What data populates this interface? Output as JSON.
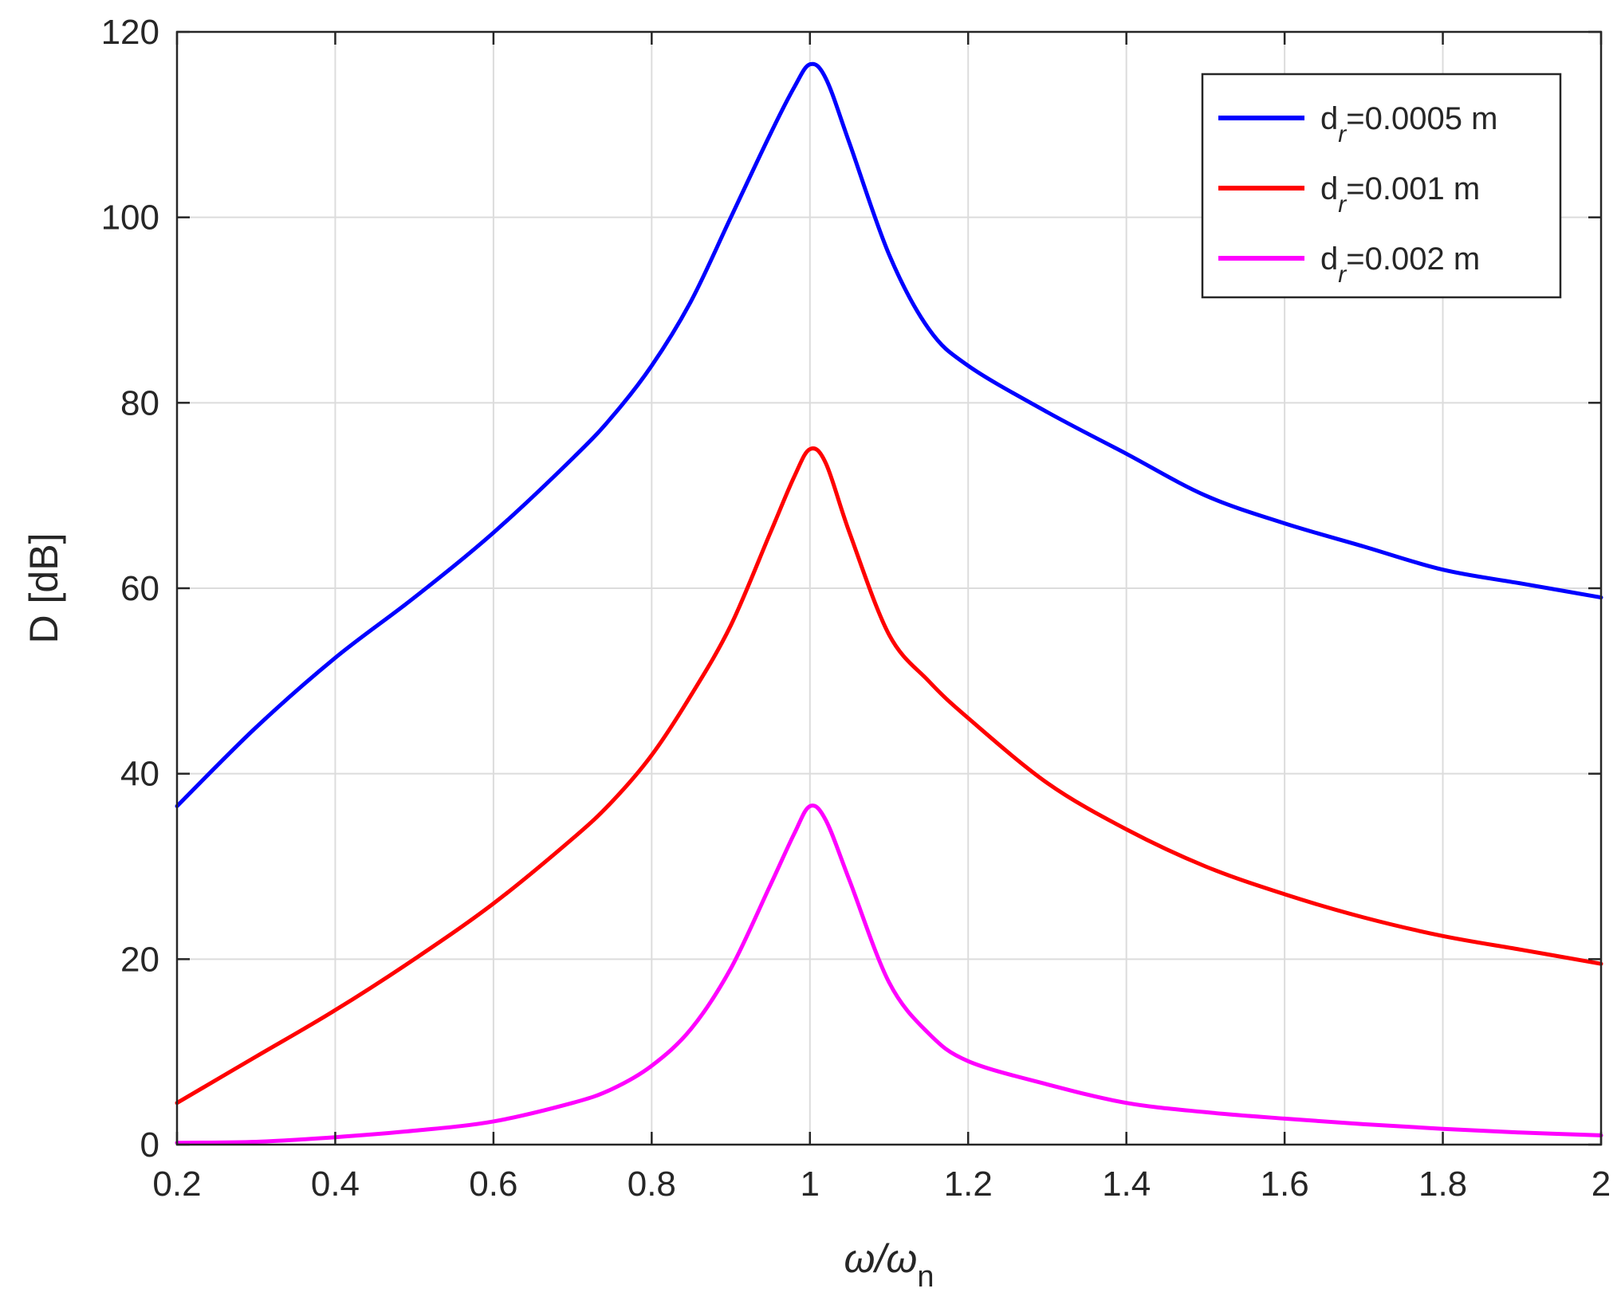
{
  "chart_data": {
    "type": "line",
    "title": "",
    "xlabel": "ω/ω",
    "xlabel_subscript": "n",
    "ylabel": "D [dB]",
    "xlim": [
      0.2,
      2
    ],
    "ylim": [
      0,
      120
    ],
    "xticks": [
      0.2,
      0.4,
      0.6,
      0.8,
      1,
      1.2,
      1.4,
      1.6,
      1.8,
      2
    ],
    "xtick_labels": [
      "0.2",
      "0.4",
      "0.6",
      "0.8",
      "1",
      "1.2",
      "1.4",
      "1.6",
      "1.8",
      "2"
    ],
    "yticks": [
      0,
      20,
      40,
      60,
      80,
      100,
      120
    ],
    "ytick_labels": [
      "0",
      "20",
      "40",
      "60",
      "80",
      "100",
      "120"
    ],
    "grid": true,
    "legend_position": "top-right",
    "x": [
      0.2,
      0.3,
      0.4,
      0.5,
      0.6,
      0.7,
      0.75,
      0.8,
      0.85,
      0.9,
      0.95,
      0.98,
      1.0,
      1.02,
      1.05,
      1.1,
      1.15,
      1.2,
      1.3,
      1.4,
      1.5,
      1.6,
      1.7,
      1.8,
      1.9,
      2.0
    ],
    "series": [
      {
        "name_main": "d",
        "name_sub": "r",
        "name_rest": "=0.0005 m",
        "color": "#0000ff",
        "values": [
          36.5,
          45,
          52.5,
          59,
          66,
          74,
          78.5,
          84,
          91,
          100,
          109,
          114,
          116.5,
          115,
          108,
          96,
          88,
          84,
          79,
          74.5,
          70,
          67,
          64.5,
          62,
          60.5,
          59
        ]
      },
      {
        "name_main": "d",
        "name_sub": "r",
        "name_rest": "=0.001 m",
        "color": "#ff0000",
        "values": [
          4.5,
          9.5,
          14.5,
          20,
          26,
          33,
          37,
          42,
          48.5,
          56,
          66,
          72,
          75,
          73.5,
          66,
          55,
          50,
          46,
          39,
          34,
          30,
          27,
          24.5,
          22.5,
          21,
          19.5
        ]
      },
      {
        "name_main": "d",
        "name_sub": "r",
        "name_rest": "=0.002 m",
        "color": "#ff00ff",
        "values": [
          0.2,
          0.3,
          0.8,
          1.5,
          2.5,
          4.5,
          6,
          8.5,
          12.5,
          19,
          28,
          33.5,
          36.5,
          35,
          28.5,
          17.5,
          12,
          9,
          6.5,
          4.5,
          3.5,
          2.8,
          2.2,
          1.7,
          1.3,
          1
        ]
      }
    ]
  }
}
